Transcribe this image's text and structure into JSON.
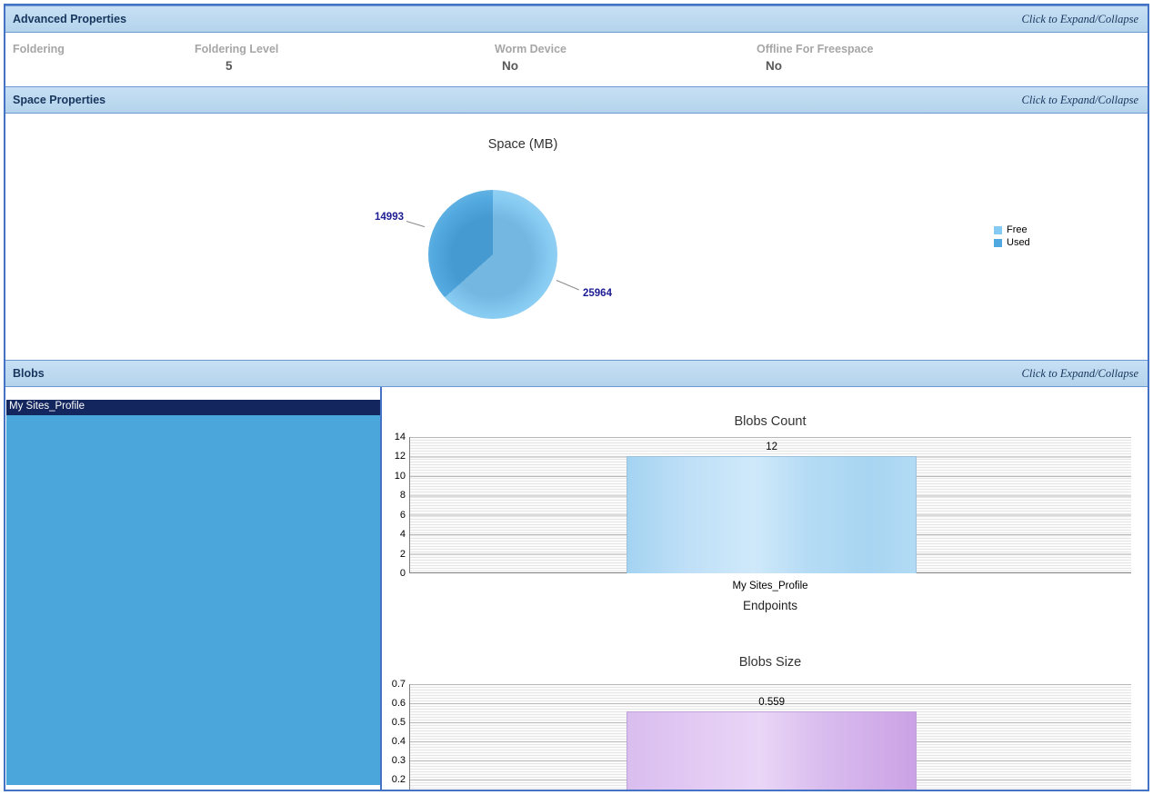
{
  "colors": {
    "border": "#4472C4",
    "section_header_bg": "#BDD7EE",
    "section_header_text": "#17365D",
    "list_selected_bg": "#14265E",
    "list_fill_bg": "#4BA6DC",
    "pie_label_text": "#1C1C94"
  },
  "sections": [
    {
      "title": "Advanced Properties",
      "toggle_hint": "Click to Expand/Collapse"
    },
    {
      "title": "Space Properties",
      "toggle_hint": "Click to Expand/Collapse"
    },
    {
      "title": "Blobs",
      "toggle_hint": "Click to Expand/Collapse"
    }
  ],
  "advanced_properties": {
    "fields": [
      {
        "label": "Foldering",
        "value": ""
      },
      {
        "label": "Foldering Level",
        "value": "5"
      },
      {
        "label": "Worm Device",
        "value": "No"
      },
      {
        "label": "Offline For Freespace",
        "value": "No"
      }
    ]
  },
  "blobs_panel": {
    "endpoints": [
      {
        "label": "My Sites_Profile",
        "selected": true
      }
    ]
  },
  "chart_data": [
    {
      "id": "space_mb_pie",
      "type": "pie",
      "title": "Space (MB)",
      "labels": [
        "Free",
        "Used"
      ],
      "values": [
        25964,
        14993
      ],
      "colors": [
        "#84CAF2",
        "#4FA8DF"
      ],
      "legend_position": "right"
    },
    {
      "id": "blobs_count",
      "type": "bar",
      "title": "Blobs Count",
      "categories": [
        "My Sites_Profile"
      ],
      "values": [
        12
      ],
      "xlabel": "Endpoints",
      "ylim": [
        0,
        14
      ],
      "yticks_top_to_bottom": [
        14,
        12,
        10,
        8,
        6,
        4,
        2,
        0
      ],
      "bar_color": "#ABD7F3",
      "grid": true
    },
    {
      "id": "blobs_size",
      "type": "bar",
      "title": "Blobs Size",
      "categories": [
        "My Sites_Profile"
      ],
      "values": [
        0.559
      ],
      "ylim": [
        0.2,
        0.7
      ],
      "yticks_top_to_bottom": [
        0.7,
        0.6,
        0.5,
        0.4,
        0.3,
        0.2
      ],
      "bar_color": "#D4B3EA",
      "grid": true
    }
  ]
}
